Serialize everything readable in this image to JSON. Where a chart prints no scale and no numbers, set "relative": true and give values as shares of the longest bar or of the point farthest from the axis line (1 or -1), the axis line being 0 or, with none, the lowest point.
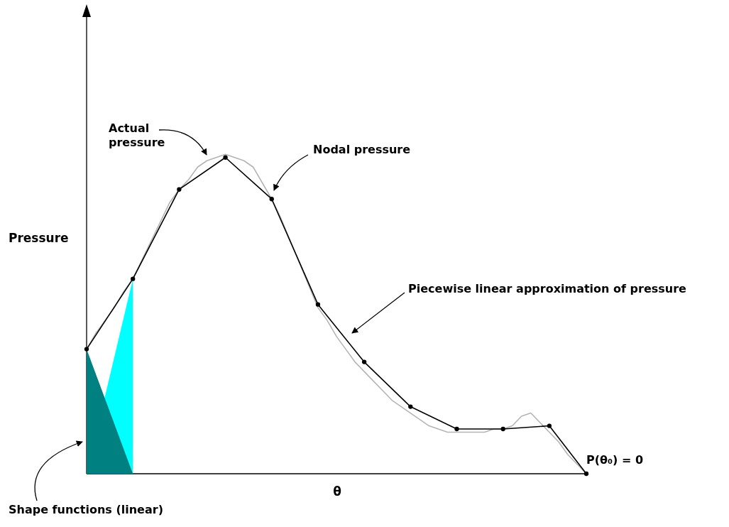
{
  "chart_data": {
    "type": "line",
    "relative": true,
    "xlabel": "θ",
    "ylabel": "Pressure",
    "categories": [
      null,
      null,
      null,
      null,
      null,
      null,
      null,
      null,
      null,
      null,
      null,
      null,
      null,
      null,
      null,
      null,
      null,
      null,
      null,
      null,
      null,
      null,
      null,
      null,
      null,
      null,
      null,
      null,
      null,
      null,
      null,
      null,
      null,
      null,
      null,
      null,
      null,
      null,
      null,
      null,
      null,
      null,
      null,
      null,
      null,
      null,
      null,
      null,
      null,
      null,
      null,
      null,
      null,
      null,
      null
    ],
    "series": [
      {
        "type": "area",
        "color": "#00ffff",
        "values": [
          0,
          null,
          null,
          null,
          null,
          0.61,
          null,
          null,
          null,
          null,
          null,
          null,
          null,
          null,
          null,
          null,
          null,
          null,
          null,
          null,
          null,
          null,
          null,
          null,
          null,
          null,
          null,
          null,
          null,
          null,
          null,
          null,
          null,
          null,
          null,
          null,
          null,
          null,
          null,
          null,
          null,
          null,
          null,
          null,
          null,
          null,
          null,
          null,
          null,
          null,
          null,
          null,
          null,
          null,
          null
        ]
      },
      {
        "type": "area",
        "color": "#008080",
        "values": [
          0.39,
          null,
          null,
          null,
          null,
          0,
          null,
          null,
          null,
          null,
          null,
          null,
          null,
          null,
          null,
          null,
          null,
          null,
          null,
          null,
          null,
          null,
          null,
          null,
          null,
          null,
          null,
          null,
          null,
          null,
          null,
          null,
          null,
          null,
          null,
          null,
          null,
          null,
          null,
          null,
          null,
          null,
          null,
          null,
          null,
          null,
          null,
          null,
          null,
          null,
          null,
          null,
          null,
          null,
          null
        ]
      },
      {
        "color": "#b4b4b4",
        "marker": "none",
        "values": [
          0.39,
          0.44,
          0.48,
          0.52,
          0.57,
          0.61,
          0.67,
          0.73,
          0.79,
          0.85,
          0.89,
          0.92,
          0.96,
          0.98,
          0.99,
          1,
          0.99,
          0.98,
          0.96,
          0.91,
          0.86,
          0.8,
          0.73,
          0.66,
          0.59,
          0.52,
          0.48,
          0.43,
          0.39,
          0.35,
          0.32,
          0.29,
          0.26,
          0.23,
          0.21,
          0.19,
          0.17,
          0.15,
          0.14,
          0.13,
          0.13,
          0.13,
          0.13,
          0.13,
          0.14,
          0.14,
          0.15,
          0.18,
          0.19,
          0.16,
          0.13,
          0.1,
          0.06,
          0.03,
          0
        ]
      },
      {
        "color": "#000000",
        "marker": "circle",
        "values": [
          0.39,
          null,
          null,
          null,
          null,
          0.61,
          null,
          null,
          null,
          null,
          0.89,
          null,
          null,
          null,
          null,
          0.99,
          null,
          null,
          null,
          null,
          0.86,
          null,
          null,
          null,
          null,
          0.53,
          null,
          null,
          null,
          null,
          0.35,
          null,
          null,
          null,
          null,
          0.21,
          null,
          null,
          null,
          null,
          0.14,
          null,
          null,
          null,
          null,
          0.14,
          null,
          null,
          null,
          null,
          0.15,
          null,
          null,
          null,
          0
        ]
      }
    ],
    "annotations": [
      "Actual\npressure",
      "Nodal pressure",
      "Piecewise linear approximation of pressure",
      "Shape functions (linear)",
      "P(θ₀) = 0"
    ]
  }
}
